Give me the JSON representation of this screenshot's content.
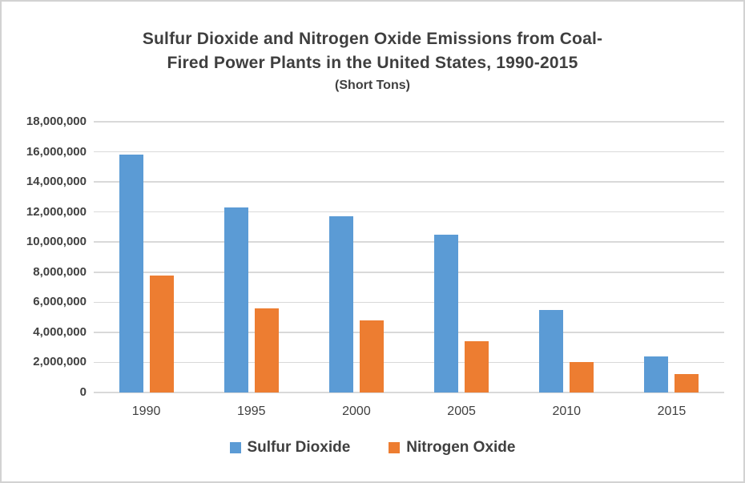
{
  "title": {
    "line1": "Sulfur Dioxide and Nitrogen Oxide Emissions from Coal-",
    "line2": "Fired Power Plants in the United States, 1990-2015",
    "line3": "(Short Tons)"
  },
  "chart_data": {
    "type": "bar",
    "title": "Sulfur Dioxide and Nitrogen Oxide Emissions from Coal-Fired Power Plants in the United States, 1990-2015",
    "subtitle": "(Short Tons)",
    "categories": [
      "1990",
      "1995",
      "2000",
      "2005",
      "2010",
      "2015"
    ],
    "series": [
      {
        "name": "Sulfur Dioxide",
        "color": "#5b9bd5",
        "values": [
          15800000,
          12300000,
          11700000,
          10500000,
          5500000,
          2400000
        ]
      },
      {
        "name": "Nitrogen Oxide",
        "color": "#ed7d31",
        "values": [
          7800000,
          5600000,
          4800000,
          3400000,
          2000000,
          1200000
        ]
      }
    ],
    "xlabel": "",
    "ylabel": "",
    "ylim": [
      0,
      18000000
    ],
    "ytick_step": 2000000,
    "ytick_labels_bottom_up": [
      "0",
      "2,000,000",
      "4,000,000",
      "6,000,000",
      "8,000,000",
      "10,000,000",
      "12,000,000",
      "14,000,000",
      "16,000,000",
      "18,000,000"
    ],
    "grid": true,
    "legend_position": "bottom"
  },
  "colors": {
    "gridline": "#d9d9d9",
    "frame_border": "#d2d2d2",
    "text": "#404040"
  }
}
